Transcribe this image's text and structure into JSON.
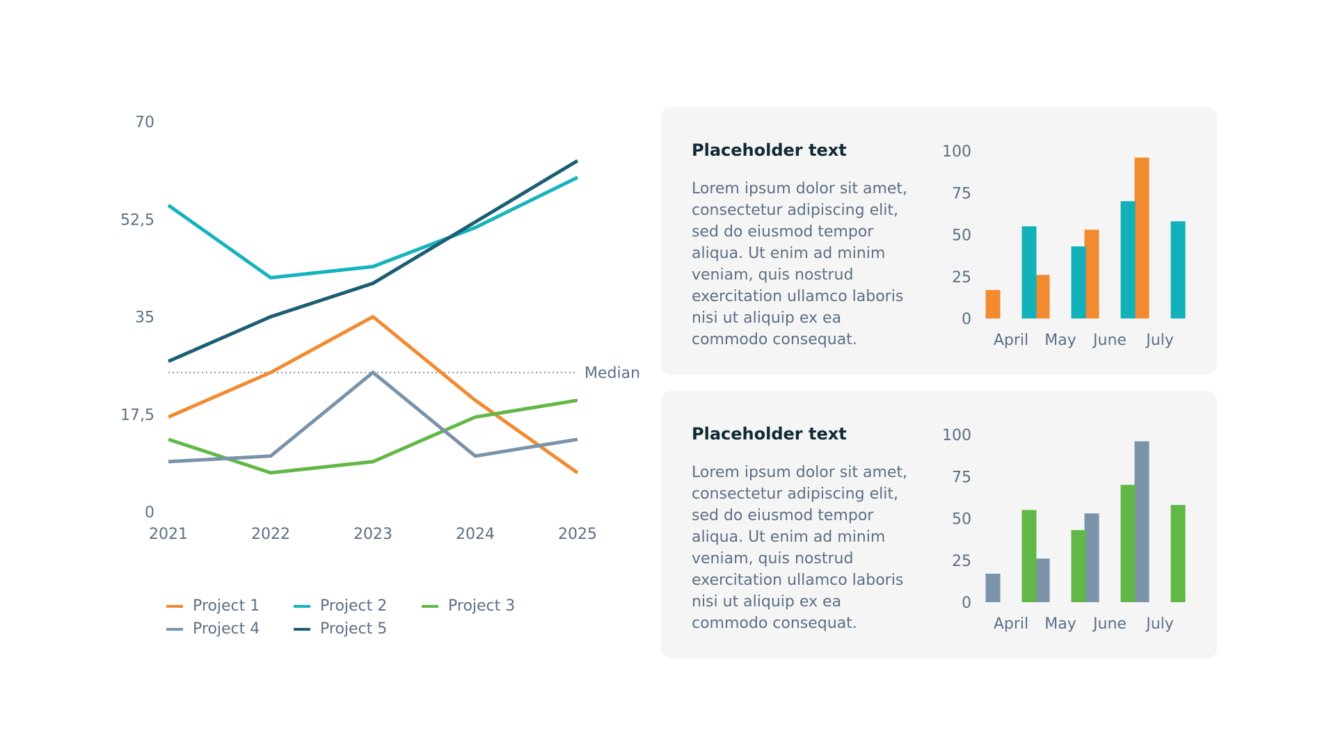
{
  "chart_data": [
    {
      "type": "line",
      "x": [
        "2021",
        "2022",
        "2023",
        "2024",
        "2025"
      ],
      "yticks": [
        "0",
        "17,5",
        "35",
        "52,5",
        "70"
      ],
      "ylim": [
        0,
        70
      ],
      "grid": false,
      "legend": "bottom",
      "series": [
        {
          "name": "Project 1",
          "color": "#F28A30",
          "values": [
            17,
            25,
            35,
            20,
            7
          ]
        },
        {
          "name": "Project 2",
          "color": "#14B3BD",
          "values": [
            55,
            42,
            44,
            51,
            60
          ]
        },
        {
          "name": "Project 3",
          "color": "#62B846",
          "values": [
            13,
            7,
            9,
            17,
            20
          ]
        },
        {
          "name": "Project 4",
          "color": "#7A93A8",
          "values": [
            9,
            10,
            25,
            10,
            13
          ]
        },
        {
          "name": "Project 5",
          "color": "#1B5E73",
          "values": [
            27,
            35,
            41,
            52,
            63
          ]
        }
      ],
      "reference_line": {
        "label": "Median",
        "value": 25,
        "style": "dotted"
      }
    },
    {
      "type": "bar",
      "categories": [
        "April",
        "May",
        "June",
        "July"
      ],
      "yticks": [
        "0",
        "25",
        "50",
        "75",
        "100"
      ],
      "ylim": [
        0,
        100
      ],
      "series": [
        {
          "color": "#F28A30",
          "values": [
            17,
            26,
            53,
            96
          ]
        },
        {
          "color": "#12B0B8",
          "values": [
            55,
            43,
            70,
            58
          ]
        }
      ]
    },
    {
      "type": "bar",
      "categories": [
        "April",
        "May",
        "June",
        "July"
      ],
      "yticks": [
        "0",
        "25",
        "50",
        "75",
        "100"
      ],
      "ylim": [
        0,
        100
      ],
      "series": [
        {
          "color": "#7A93A8",
          "values": [
            17,
            26,
            53,
            96
          ]
        },
        {
          "color": "#62B846",
          "values": [
            55,
            43,
            70,
            58
          ]
        }
      ]
    }
  ],
  "cards": [
    {
      "title": "Placeholder text",
      "body": [
        "Lorem ipsum dolor sit amet,",
        "consectetur adipiscing elit,",
        "sed do eiusmod tempor",
        "aliqua. Ut enim ad minim",
        "veniam, quis nostrud",
        "exercitation ullamco laboris",
        "nisi ut aliquip ex ea",
        "commodo consequat."
      ]
    },
    {
      "title": "Placeholder text",
      "body": [
        "Lorem ipsum dolor sit amet,",
        "consectetur adipiscing elit,",
        "sed do eiusmod tempor",
        "aliqua. Ut enim ad minim",
        "veniam, quis nostrud",
        "exercitation ullamco laboris",
        "nisi ut aliquip ex ea",
        "commodo consequat."
      ]
    }
  ]
}
